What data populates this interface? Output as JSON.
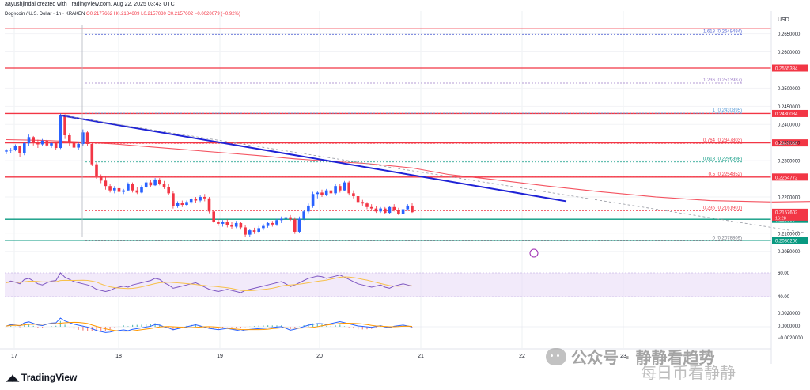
{
  "header": "aayushjindal created with TradingView.com, Aug 22, 2025 03:43 UTC",
  "legend": {
    "symbol": "Dogecoin / U.S. Dollar · 1h · KRAKEN",
    "ohlc": "O0.2177662 H0.2184609 L0.2157080 C0.2157602 −0.0020079 (−0.92%)"
  },
  "currency": "USD",
  "footer_logo": "TradingView",
  "watermark": "公众号 · 静静看趋势",
  "watermark_sub": "每日币看静静",
  "chart_data": {
    "type": "candlestick",
    "interval": "1h",
    "ylim": [
      0.2045,
      0.2695
    ],
    "x_ticks": [
      "17",
      "18",
      "19",
      "20",
      "21",
      "22",
      "23"
    ],
    "y_ticks": [
      "0.2650000",
      "0.2600000",
      "0.2500000",
      "0.2450000",
      "0.2400000",
      "0.2350000",
      "0.2300000",
      "0.2200000",
      "0.2100000",
      "0.2050000"
    ],
    "current_price": "0.2157602",
    "current_time": "16:28",
    "resistance_lines": [
      {
        "value": 0.2665,
        "label": "",
        "color": "#f23645"
      },
      {
        "value": 0.2555384,
        "label": "0.2555384",
        "color": "#f23645"
      },
      {
        "value": 0.2430084,
        "label": "0.2430084",
        "color": "#f23645"
      },
      {
        "value": 0.2349038,
        "label": "0.2349038",
        "color": "#f23645"
      },
      {
        "value": 0.2254772,
        "label": "0.2254772",
        "color": "#f23645"
      }
    ],
    "support_lines": [
      {
        "value": 0.2138394,
        "label": "0.2138394",
        "color": "#089981"
      },
      {
        "value": 0.2080206,
        "label": "0.2080206",
        "color": "#089981"
      }
    ],
    "fib_levels": [
      {
        "ratio": "1.618",
        "value": 0.2648484,
        "label": "1.618 (0.2648484)",
        "color": "#5b6bd6"
      },
      {
        "ratio": "1.236",
        "value": 0.2513987,
        "label": "1.236 (0.2513987)",
        "color": "#9c7cc9"
      },
      {
        "ratio": "1",
        "value": 0.2430895,
        "label": "1 (0.2430895)",
        "color": "#5b9bd6"
      },
      {
        "ratio": "0.764",
        "value": 0.2347803,
        "label": "0.764 (0.2347803)",
        "color": "#f23645"
      },
      {
        "ratio": "0.618",
        "value": 0.2296398,
        "label": "0.618 (0.2296398)",
        "color": "#089981"
      },
      {
        "ratio": "0.5",
        "value": 0.2254852,
        "label": "0.5 (0.2254852)",
        "color": "#f23645"
      },
      {
        "ratio": "0.236",
        "value": 0.2161901,
        "label": "0.236 (0.2161901)",
        "color": "#f23645"
      },
      {
        "ratio": "0",
        "value": 0.2078809,
        "label": "0 (0.2078809)",
        "color": "#787b86"
      }
    ],
    "candles": [
      [
        0.2325,
        0.2332,
        0.2318,
        0.2328
      ],
      [
        0.2328,
        0.2335,
        0.2322,
        0.233
      ],
      [
        0.233,
        0.2345,
        0.2326,
        0.234
      ],
      [
        0.234,
        0.2342,
        0.231,
        0.232
      ],
      [
        0.232,
        0.2352,
        0.2315,
        0.2348
      ],
      [
        0.2348,
        0.2372,
        0.234,
        0.2365
      ],
      [
        0.2365,
        0.2368,
        0.2342,
        0.235
      ],
      [
        0.235,
        0.2358,
        0.2335,
        0.2345
      ],
      [
        0.2345,
        0.236,
        0.234,
        0.2355
      ],
      [
        0.2355,
        0.2358,
        0.2338,
        0.2342
      ],
      [
        0.2342,
        0.2352,
        0.2335,
        0.2348
      ],
      [
        0.2348,
        0.2352,
        0.233,
        0.2335
      ],
      [
        0.2335,
        0.243,
        0.2332,
        0.2425
      ],
      [
        0.2425,
        0.2428,
        0.236,
        0.237
      ],
      [
        0.237,
        0.2376,
        0.234,
        0.2352
      ],
      [
        0.2352,
        0.2356,
        0.233,
        0.2336
      ],
      [
        0.2336,
        0.235,
        0.233,
        0.2346
      ],
      [
        0.2346,
        0.2386,
        0.2342,
        0.2378
      ],
      [
        0.2378,
        0.2382,
        0.234,
        0.2346
      ],
      [
        0.2346,
        0.235,
        0.2285,
        0.229
      ],
      [
        0.229,
        0.2295,
        0.225,
        0.2258
      ],
      [
        0.2258,
        0.2262,
        0.2238,
        0.2245
      ],
      [
        0.2245,
        0.2256,
        0.222,
        0.223
      ],
      [
        0.223,
        0.2236,
        0.2212,
        0.2218
      ],
      [
        0.2218,
        0.223,
        0.221,
        0.2224
      ],
      [
        0.2224,
        0.223,
        0.2205,
        0.2214
      ],
      [
        0.2214,
        0.2222,
        0.2208,
        0.2218
      ],
      [
        0.2218,
        0.224,
        0.2215,
        0.2236
      ],
      [
        0.2236,
        0.224,
        0.2212,
        0.2218
      ],
      [
        0.2218,
        0.2226,
        0.2208,
        0.2212
      ],
      [
        0.2212,
        0.2232,
        0.221,
        0.2228
      ],
      [
        0.2228,
        0.2246,
        0.2224,
        0.224
      ],
      [
        0.224,
        0.2246,
        0.2228,
        0.2232
      ],
      [
        0.2232,
        0.2252,
        0.223,
        0.2248
      ],
      [
        0.2248,
        0.2252,
        0.2232,
        0.2236
      ],
      [
        0.2236,
        0.2244,
        0.2222,
        0.2228
      ],
      [
        0.2228,
        0.2236,
        0.2205,
        0.221
      ],
      [
        0.221,
        0.2216,
        0.2168,
        0.2174
      ],
      [
        0.2174,
        0.2188,
        0.217,
        0.2184
      ],
      [
        0.2184,
        0.219,
        0.2172,
        0.2178
      ],
      [
        0.2178,
        0.219,
        0.2175,
        0.2186
      ],
      [
        0.2186,
        0.2198,
        0.218,
        0.2194
      ],
      [
        0.2194,
        0.22,
        0.2184,
        0.219
      ],
      [
        0.219,
        0.2205,
        0.2186,
        0.22
      ],
      [
        0.22,
        0.2208,
        0.2188,
        0.2196
      ],
      [
        0.2196,
        0.22,
        0.2155,
        0.216
      ],
      [
        0.216,
        0.2164,
        0.2128,
        0.2132
      ],
      [
        0.2132,
        0.214,
        0.212,
        0.2126
      ],
      [
        0.2126,
        0.2136,
        0.2118,
        0.213
      ],
      [
        0.213,
        0.2138,
        0.2116,
        0.2122
      ],
      [
        0.2122,
        0.213,
        0.2112,
        0.2118
      ],
      [
        0.2118,
        0.2134,
        0.2114,
        0.2128
      ],
      [
        0.2128,
        0.2132,
        0.211,
        0.2116
      ],
      [
        0.2116,
        0.2122,
        0.209,
        0.2096
      ],
      [
        0.2096,
        0.2112,
        0.209,
        0.2108
      ],
      [
        0.2108,
        0.2115,
        0.2098,
        0.2104
      ],
      [
        0.2104,
        0.212,
        0.21,
        0.2114
      ],
      [
        0.2114,
        0.2126,
        0.2108,
        0.212
      ],
      [
        0.212,
        0.2132,
        0.2115,
        0.2128
      ],
      [
        0.2128,
        0.2134,
        0.2118,
        0.2124
      ],
      [
        0.2124,
        0.214,
        0.212,
        0.2136
      ],
      [
        0.2136,
        0.2146,
        0.2128,
        0.214
      ],
      [
        0.214,
        0.2148,
        0.2132,
        0.2144
      ],
      [
        0.2144,
        0.215,
        0.2134,
        0.2138
      ],
      [
        0.2138,
        0.2144,
        0.2098,
        0.2104
      ],
      [
        0.2104,
        0.2146,
        0.21,
        0.214
      ],
      [
        0.214,
        0.2165,
        0.2136,
        0.216
      ],
      [
        0.216,
        0.2182,
        0.2155,
        0.2176
      ],
      [
        0.2176,
        0.2214,
        0.217,
        0.2208
      ],
      [
        0.2208,
        0.2216,
        0.2196,
        0.2212
      ],
      [
        0.2212,
        0.222,
        0.22,
        0.2206
      ],
      [
        0.2206,
        0.2222,
        0.2202,
        0.2218
      ],
      [
        0.2218,
        0.2224,
        0.2204,
        0.221
      ],
      [
        0.221,
        0.2236,
        0.2206,
        0.223
      ],
      [
        0.223,
        0.2236,
        0.2212,
        0.2218
      ],
      [
        0.2218,
        0.2244,
        0.2215,
        0.224
      ],
      [
        0.224,
        0.2244,
        0.2204,
        0.221
      ],
      [
        0.221,
        0.2218,
        0.2196,
        0.2202
      ],
      [
        0.2202,
        0.2208,
        0.2182,
        0.2186
      ],
      [
        0.2186,
        0.2192,
        0.2176,
        0.2182
      ],
      [
        0.2182,
        0.2186,
        0.2166,
        0.2172
      ],
      [
        0.2172,
        0.218,
        0.2164,
        0.2168
      ],
      [
        0.2168,
        0.2174,
        0.2156,
        0.216
      ],
      [
        0.216,
        0.2172,
        0.2156,
        0.2168
      ],
      [
        0.2168,
        0.2172,
        0.2152,
        0.2156
      ],
      [
        0.2156,
        0.2176,
        0.2152,
        0.2172
      ],
      [
        0.2172,
        0.218,
        0.216,
        0.2164
      ],
      [
        0.2164,
        0.217,
        0.215,
        0.2154
      ],
      [
        0.2154,
        0.217,
        0.215,
        0.2166
      ],
      [
        0.2166,
        0.218,
        0.2162,
        0.2176
      ],
      [
        0.2176,
        0.2184,
        0.2156,
        0.2158
      ]
    ],
    "ma_points": [
      [
        0.2358,
        0
      ],
      [
        0.2356,
        8
      ],
      [
        0.2352,
        16
      ],
      [
        0.2346,
        24
      ],
      [
        0.2338,
        32
      ],
      [
        0.233,
        40
      ],
      [
        0.2322,
        48
      ],
      [
        0.2314,
        56
      ],
      [
        0.2305,
        64
      ],
      [
        0.2298,
        72
      ],
      [
        0.2292,
        80
      ],
      [
        0.228,
        90
      ],
      [
        0.2262,
        98
      ],
      [
        0.2248,
        108
      ],
      [
        0.223,
        120
      ],
      [
        0.2214,
        132
      ],
      [
        0.22,
        144
      ],
      [
        0.219,
        156
      ],
      [
        0.2186,
        170
      ],
      [
        0.2188,
        182
      ],
      [
        0.2192,
        195
      ],
      [
        0.2194,
        208
      ],
      [
        0.2192,
        220
      ],
      [
        0.2188,
        232
      ],
      [
        0.218,
        244
      ],
      [
        0.2172,
        256
      ],
      [
        0.2166,
        268
      ],
      [
        0.216,
        280
      ]
    ],
    "trendline": {
      "start": [
        0.2425,
        12
      ],
      "end": [
        0.2188,
        279
      ]
    },
    "dashed_line": {
      "start": [
        0.2425,
        12
      ],
      "end": [
        0.2082,
        187
      ]
    },
    "rsi": {
      "levels": [
        "60.00",
        "40.00"
      ]
    },
    "macd": {
      "levels": [
        "0.0020000",
        "0.0000000",
        "−0.0020000"
      ]
    }
  }
}
